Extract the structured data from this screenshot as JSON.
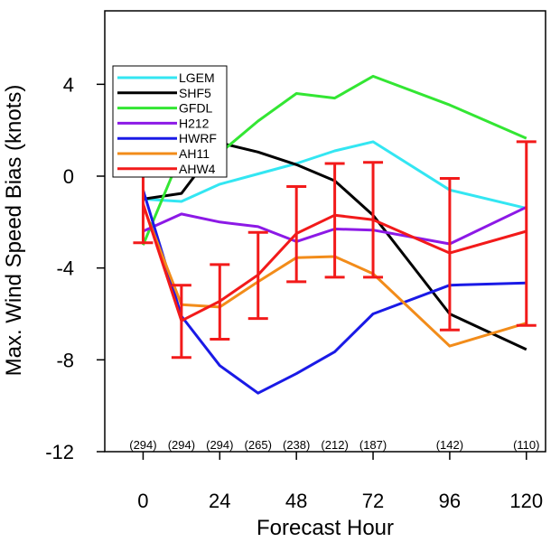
{
  "chart_data": {
    "type": "line",
    "title": "",
    "xlabel": "Forecast Hour",
    "ylabel": "Max. Wind Speed Bias (knots)",
    "xlim": [
      -12,
      126
    ],
    "ylim": [
      -12,
      7.2
    ],
    "xticks": [
      0,
      24,
      48,
      72,
      96,
      120
    ],
    "yticks": [
      -12,
      -8,
      -4,
      0,
      4
    ],
    "ytick_labels": [
      "-12",
      "-8",
      "-4",
      "0",
      "4"
    ],
    "grid": false,
    "legend_position": "top-left",
    "series": [
      {
        "name": "LGEM",
        "color": "#33e6f2",
        "x": [
          0,
          12,
          24,
          36,
          48,
          60,
          72,
          96,
          120
        ],
        "y": [
          -1.0,
          -1.1,
          -0.35,
          0.1,
          0.55,
          1.1,
          1.5,
          -0.6,
          -1.4
        ]
      },
      {
        "name": "SHF5",
        "color": "#000000",
        "x": [
          0,
          12,
          24,
          36,
          48,
          60,
          72,
          96,
          120
        ],
        "y": [
          -1.0,
          -0.75,
          1.45,
          1.05,
          0.5,
          -0.2,
          -1.7,
          -6.0,
          -7.55
        ]
      },
      {
        "name": "GFDL",
        "color": "#33e633",
        "x": [
          0,
          12,
          24,
          36,
          48,
          60,
          72,
          96,
          120
        ],
        "y": [
          -3.0,
          1.0,
          1.0,
          2.4,
          3.6,
          3.4,
          4.35,
          3.1,
          1.65
        ]
      },
      {
        "name": "H212",
        "color": "#8c19e6",
        "x": [
          0,
          12,
          24,
          36,
          48,
          60,
          72,
          96,
          120
        ],
        "y": [
          -2.4,
          -1.65,
          -2.0,
          -2.2,
          -2.85,
          -2.3,
          -2.35,
          -2.95,
          -1.35
        ]
      },
      {
        "name": "HWRF",
        "color": "#1a1ae6",
        "x": [
          0,
          12,
          24,
          36,
          48,
          60,
          72,
          96,
          120
        ],
        "y": [
          -0.6,
          -6.1,
          -8.25,
          -9.45,
          -8.6,
          -7.65,
          -6.0,
          -4.75,
          -4.65
        ]
      },
      {
        "name": "AH11",
        "color": "#f28c1a",
        "x": [
          0,
          12,
          24,
          36,
          48,
          60,
          72,
          96,
          120
        ],
        "y": [
          -1.3,
          -5.6,
          -5.7,
          -4.6,
          -3.55,
          -3.5,
          -4.25,
          -7.4,
          -6.4
        ]
      },
      {
        "name": "AHW4",
        "color": "#f21a1a",
        "x": [
          0,
          12,
          24,
          36,
          48,
          60,
          72,
          96,
          120
        ],
        "y": [
          -1.2,
          -6.3,
          -5.45,
          -4.3,
          -2.5,
          -1.7,
          -1.9,
          -3.35,
          -2.4
        ]
      }
    ],
    "error_bars": {
      "series": "AHW4",
      "color": "#f21a1a",
      "x": [
        0,
        12,
        24,
        36,
        48,
        60,
        72,
        96,
        120
      ],
      "low": [
        -2.9,
        -7.9,
        -7.1,
        -6.2,
        -4.6,
        -4.4,
        -4.4,
        -6.7,
        -6.5
      ],
      "high": [
        0.4,
        -4.75,
        -3.85,
        -2.45,
        -0.45,
        0.55,
        0.6,
        -0.1,
        1.5
      ]
    },
    "sample_counts": {
      "x": [
        0,
        12,
        24,
        36,
        48,
        60,
        72,
        96,
        120
      ],
      "labels": [
        "(294)",
        "(294)",
        "(294)",
        "(265)",
        "(238)",
        "(212)",
        "(187)",
        "(142)",
        "(110)"
      ]
    }
  }
}
